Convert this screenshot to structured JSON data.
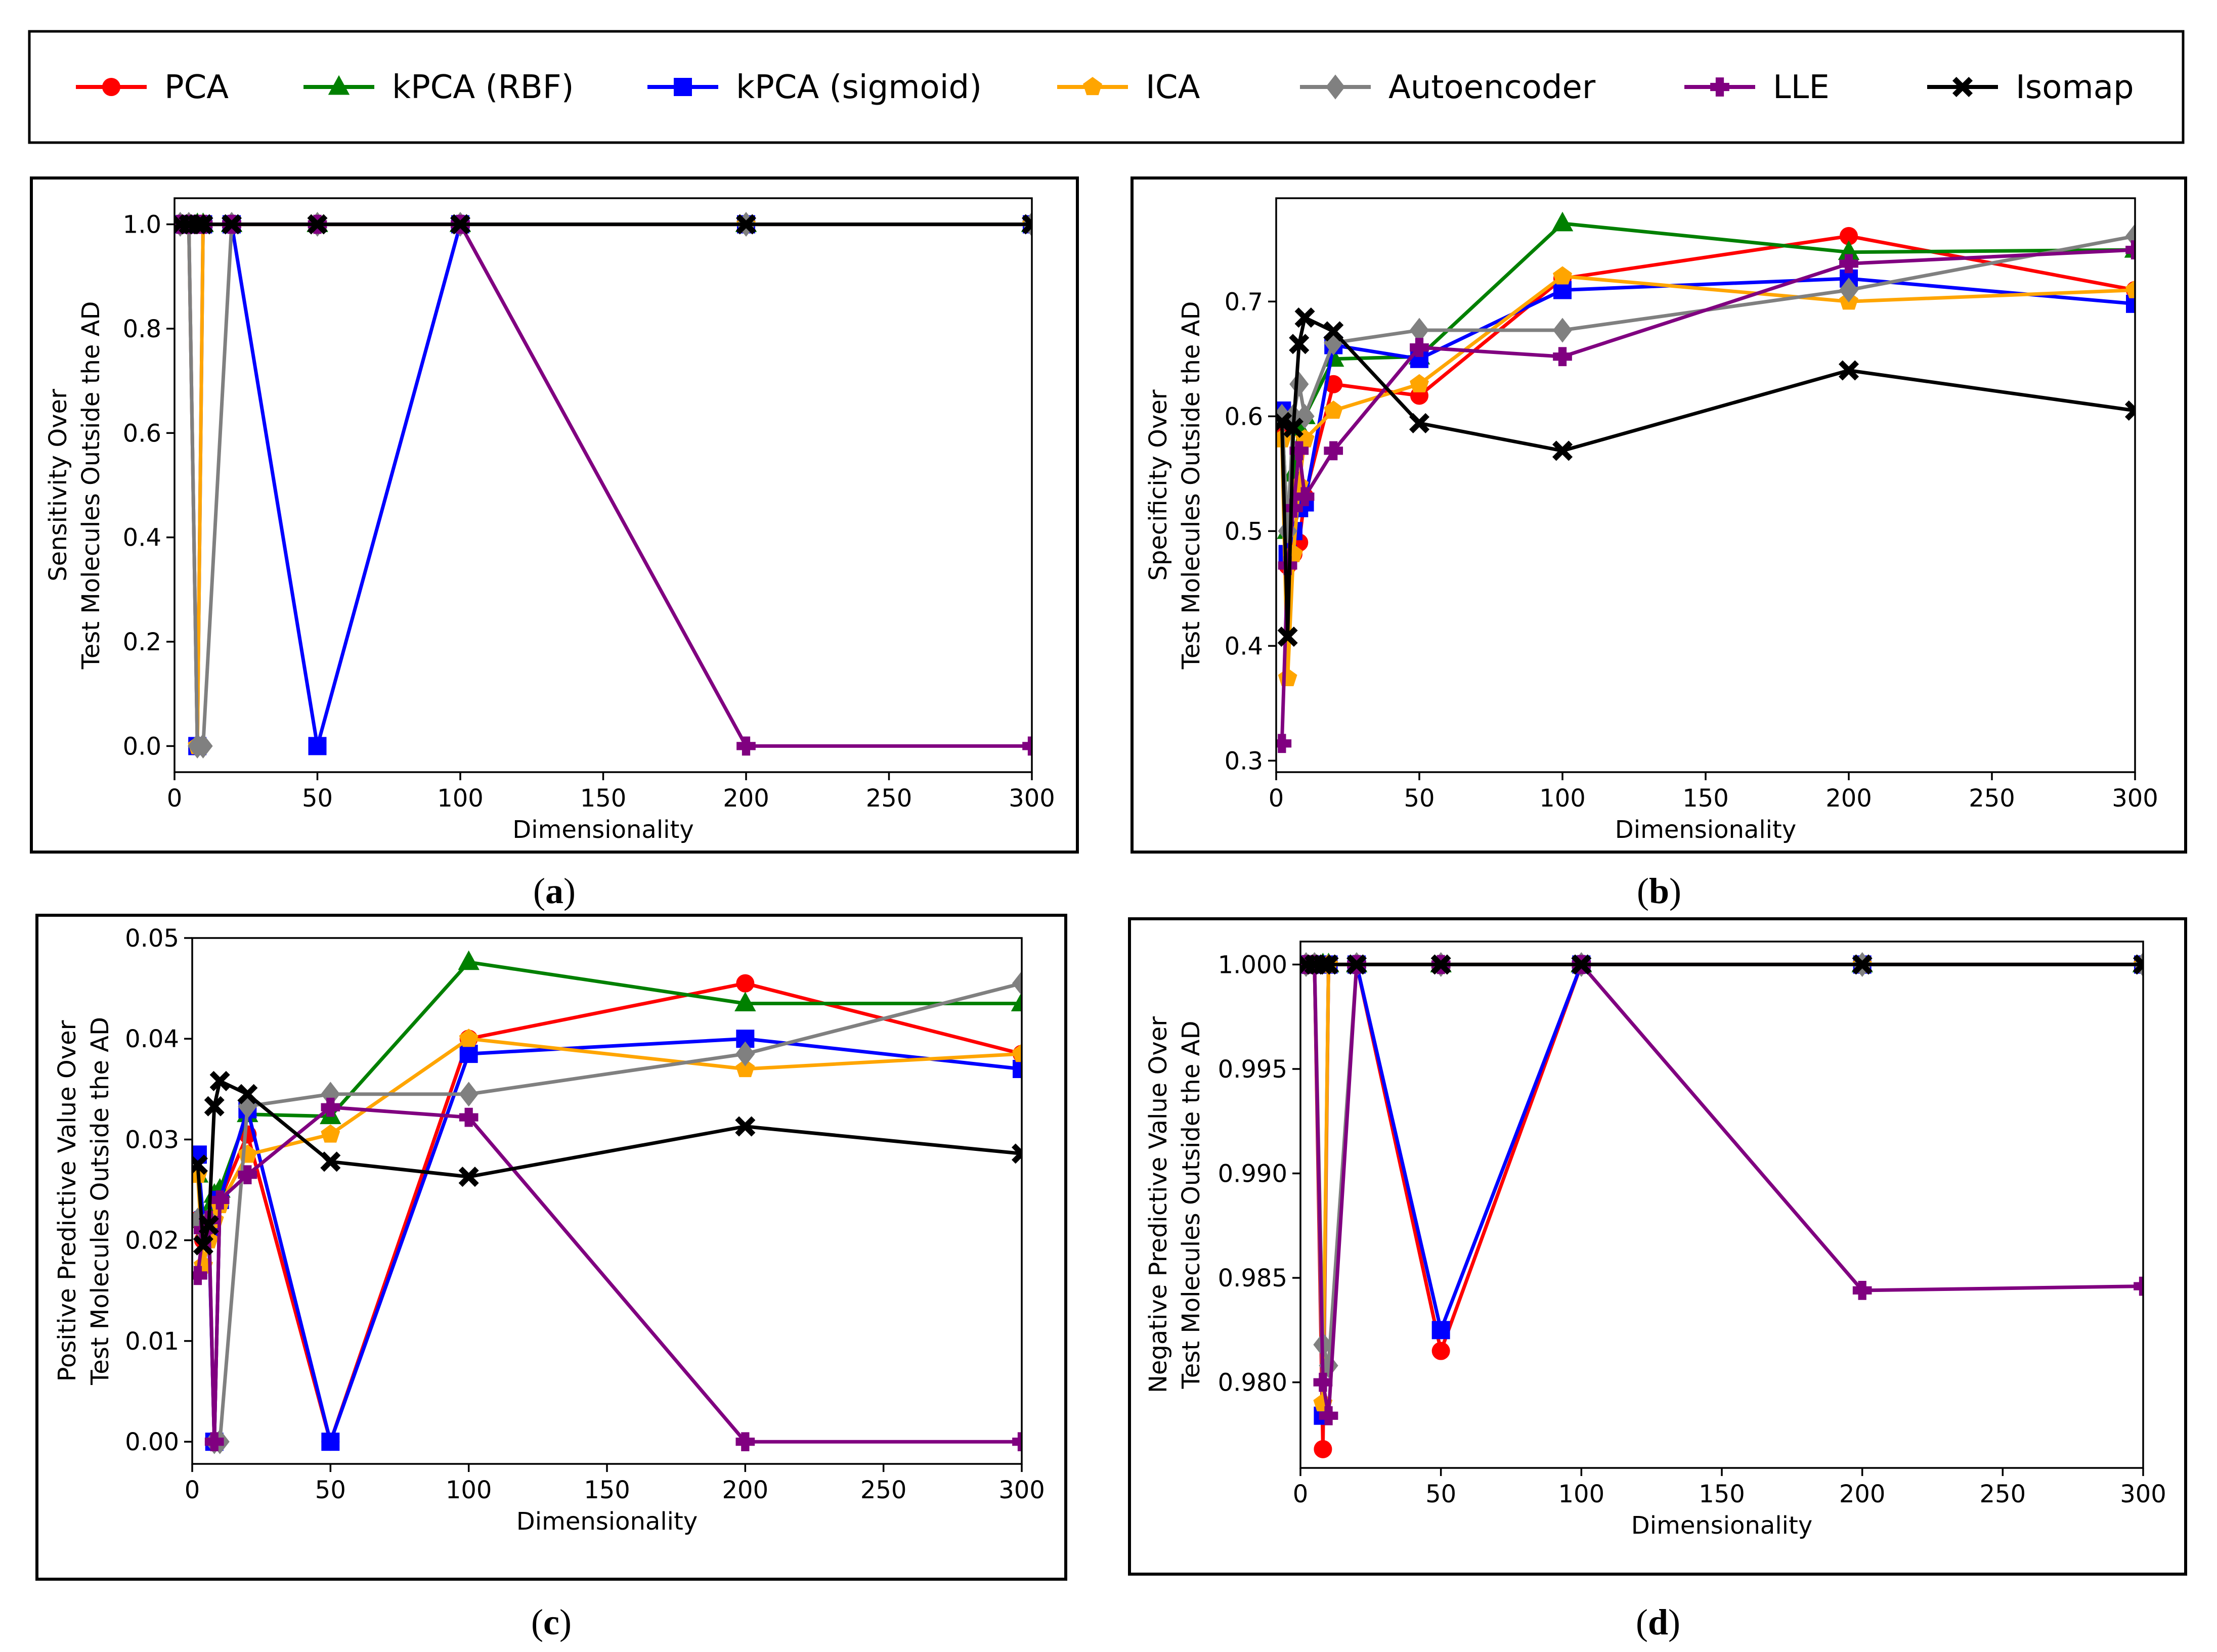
{
  "series": [
    {
      "name": "PCA",
      "color": "#ff0000",
      "marker": "circle"
    },
    {
      "name": "kPCA (RBF)",
      "color": "#008000",
      "marker": "triangle"
    },
    {
      "name": "kPCA (sigmoid)",
      "color": "#0000ff",
      "marker": "square"
    },
    {
      "name": "ICA",
      "color": "#ffa500",
      "marker": "pentagon"
    },
    {
      "name": "Autoencoder",
      "color": "#808080",
      "marker": "diamond"
    },
    {
      "name": "LLE",
      "color": "#800080",
      "marker": "plus"
    },
    {
      "name": "Isomap",
      "color": "#000000",
      "marker": "x"
    }
  ],
  "chart_data": [
    {
      "type": "line",
      "panel": "a",
      "caption": "a",
      "xlabel": "Dimensionality",
      "ylabel": [
        "Sensitivity Over",
        "Test Molecules Outside the AD"
      ],
      "xlim": [
        0,
        300
      ],
      "ylim": [
        -0.05,
        1.05
      ],
      "xticks": [
        0,
        50,
        100,
        150,
        200,
        250,
        300
      ],
      "xtick_labels": [
        "0",
        "50",
        "100",
        "150",
        "200",
        "250",
        "300"
      ],
      "yticks": [
        0,
        0.2,
        0.4,
        0.6,
        0.8,
        1.0
      ],
      "ytick_labels": [
        "0.0",
        "0.2",
        "0.4",
        "0.6",
        "0.8",
        "1.0"
      ],
      "x": [
        2,
        5,
        8,
        10,
        20,
        50,
        100,
        200,
        300
      ],
      "series": [
        {
          "name": "PCA",
          "values": [
            1,
            1,
            1,
            1,
            1,
            1,
            1,
            1,
            1
          ]
        },
        {
          "name": "kPCA (RBF)",
          "values": [
            1,
            1,
            1,
            1,
            1,
            1,
            1,
            1,
            1
          ]
        },
        {
          "name": "kPCA (sigmoid)",
          "values": [
            1,
            1,
            0,
            1,
            1,
            0,
            1,
            1,
            1
          ]
        },
        {
          "name": "ICA",
          "values": [
            1,
            1,
            0,
            1,
            1,
            1,
            1,
            1,
            1
          ]
        },
        {
          "name": "Autoencoder",
          "values": [
            1,
            1,
            0,
            0,
            1,
            1,
            1,
            1,
            1
          ]
        },
        {
          "name": "LLE",
          "values": [
            1,
            1,
            1,
            1,
            1,
            1,
            1,
            0,
            0
          ]
        },
        {
          "name": "Isomap",
          "values": [
            1,
            1,
            1,
            1,
            1,
            1,
            1,
            1,
            1
          ]
        }
      ]
    },
    {
      "type": "line",
      "panel": "b",
      "caption": "b",
      "xlabel": "Dimensionality",
      "ylabel": [
        "Specificity Over",
        "Test Molecules Outside the AD"
      ],
      "xlim": [
        0,
        300
      ],
      "ylim": [
        0.29,
        0.79
      ],
      "xticks": [
        0,
        50,
        100,
        150,
        200,
        250,
        300
      ],
      "xtick_labels": [
        "0",
        "50",
        "100",
        "150",
        "200",
        "250",
        "300"
      ],
      "yticks": [
        0.3,
        0.4,
        0.5,
        0.6,
        0.7
      ],
      "ytick_labels": [
        "0.3",
        "0.4",
        "0.5",
        "0.6",
        "0.7"
      ],
      "x": [
        2,
        4,
        6,
        8,
        10,
        20,
        50,
        100,
        200,
        300
      ],
      "series": [
        {
          "name": "PCA",
          "values": [
            0.59,
            0.47,
            0.48,
            0.49,
            0.53,
            0.628,
            0.618,
            0.72,
            0.757,
            0.71
          ]
        },
        {
          "name": "kPCA (RBF)",
          "values": [
            0.6,
            0.5,
            0.55,
            0.59,
            0.6,
            0.65,
            0.652,
            0.768,
            0.743,
            0.745
          ]
        },
        {
          "name": "kPCA (sigmoid)",
          "values": [
            0.605,
            0.48,
            0.5,
            0.52,
            0.525,
            0.662,
            0.65,
            0.71,
            0.72,
            0.698
          ]
        },
        {
          "name": "ICA",
          "values": [
            0.58,
            0.372,
            0.48,
            0.54,
            0.58,
            0.605,
            0.628,
            0.722,
            0.7,
            0.71
          ]
        },
        {
          "name": "Autoencoder",
          "values": [
            0.6,
            0.5,
            0.6,
            0.628,
            0.6,
            0.664,
            0.675,
            0.675,
            0.71,
            0.757
          ]
        },
        {
          "name": "LLE",
          "values": [
            0.315,
            0.47,
            0.52,
            0.57,
            0.53,
            0.57,
            0.66,
            0.652,
            0.733,
            0.745
          ]
        },
        {
          "name": "Isomap",
          "values": [
            0.595,
            0.408,
            0.59,
            0.663,
            0.686,
            0.674,
            0.594,
            0.57,
            0.64,
            0.605
          ]
        }
      ]
    },
    {
      "type": "line",
      "panel": "c",
      "caption": "c",
      "xlabel": "Dimensionality",
      "ylabel": [
        "Positive Predictive Value Over",
        "Test Molecules Outside the AD"
      ],
      "xlim": [
        0,
        300
      ],
      "ylim": [
        -0.0022,
        0.05
      ],
      "xticks": [
        0,
        50,
        100,
        150,
        200,
        250,
        300
      ],
      "xtick_labels": [
        "0",
        "50",
        "100",
        "150",
        "200",
        "250",
        "300"
      ],
      "yticks": [
        0,
        0.01,
        0.02,
        0.03,
        0.04,
        0.05
      ],
      "ytick_labels": [
        "0.00",
        "0.01",
        "0.02",
        "0.03",
        "0.04",
        "0.05"
      ],
      "x": [
        2,
        4,
        6,
        8,
        10,
        20,
        50,
        100,
        200,
        300
      ],
      "series": [
        {
          "name": "PCA",
          "values": [
            0.022,
            0.02,
            0.0215,
            0,
            0.024,
            0.0305,
            0,
            0.04,
            0.0455,
            0.0385
          ]
        },
        {
          "name": "kPCA (RBF)",
          "values": [
            0.0265,
            0.022,
            0.023,
            0.0245,
            0.025,
            0.0325,
            0.0323,
            0.0476,
            0.0435,
            0.0435
          ]
        },
        {
          "name": "kPCA (sigmoid)",
          "values": [
            0.0285,
            0.022,
            0.021,
            0,
            0.024,
            0.033,
            0,
            0.0385,
            0.04,
            0.037
          ]
        },
        {
          "name": "ICA",
          "values": [
            0.0265,
            0.0175,
            0.02,
            0.022,
            0.0235,
            0.0285,
            0.0305,
            0.04,
            0.037,
            0.0385
          ]
        },
        {
          "name": "Autoencoder",
          "values": [
            0.022,
            0.021,
            0.022,
            0,
            0,
            0.0333,
            0.0345,
            0.0345,
            0.0385,
            0.0455
          ]
        },
        {
          "name": "LLE",
          "values": [
            0.0165,
            0.021,
            0.022,
            0,
            0.024,
            0.0265,
            0.0332,
            0.0322,
            0,
            0
          ]
        },
        {
          "name": "Isomap",
          "values": [
            0.0275,
            0.0195,
            0.0215,
            0.0333,
            0.0358,
            0.0345,
            0.0278,
            0.0263,
            0.0313,
            0.0286
          ]
        }
      ]
    },
    {
      "type": "line",
      "panel": "d",
      "caption": "d",
      "xlabel": "Dimensionality",
      "ylabel": [
        "Negative Predictive Value Over",
        "Test Molecules Outside the AD"
      ],
      "xlim": [
        0,
        300
      ],
      "ylim": [
        0.9759,
        1.0011
      ],
      "xticks": [
        0,
        50,
        100,
        150,
        200,
        250,
        300
      ],
      "xtick_labels": [
        "0",
        "50",
        "100",
        "150",
        "200",
        "250",
        "300"
      ],
      "yticks": [
        0.98,
        0.985,
        0.99,
        0.995,
        1.0
      ],
      "ytick_labels": [
        "0.980",
        "0.985",
        "0.990",
        "0.995",
        "1.000"
      ],
      "x": [
        2,
        5,
        8,
        10,
        20,
        50,
        100,
        200,
        300
      ],
      "series": [
        {
          "name": "PCA",
          "values": [
            1,
            1,
            0.9768,
            1,
            1,
            0.9815,
            1,
            1,
            1
          ]
        },
        {
          "name": "kPCA (RBF)",
          "values": [
            1,
            1,
            1,
            1,
            1,
            1,
            1,
            1,
            1
          ]
        },
        {
          "name": "kPCA (sigmoid)",
          "values": [
            1,
            1,
            0.9784,
            1,
            1,
            0.9825,
            1,
            1,
            1
          ]
        },
        {
          "name": "ICA",
          "values": [
            1,
            1,
            0.979,
            1,
            1,
            1,
            1,
            1,
            1
          ]
        },
        {
          "name": "Autoencoder",
          "values": [
            1,
            1,
            0.9818,
            0.9808,
            1,
            1,
            1,
            1,
            1
          ]
        },
        {
          "name": "LLE",
          "values": [
            1,
            1,
            0.98,
            0.9784,
            1,
            1,
            1,
            0.9844,
            0.9846
          ]
        },
        {
          "name": "Isomap",
          "values": [
            1,
            1,
            1,
            1,
            1,
            1,
            1,
            1,
            1
          ]
        }
      ]
    }
  ]
}
